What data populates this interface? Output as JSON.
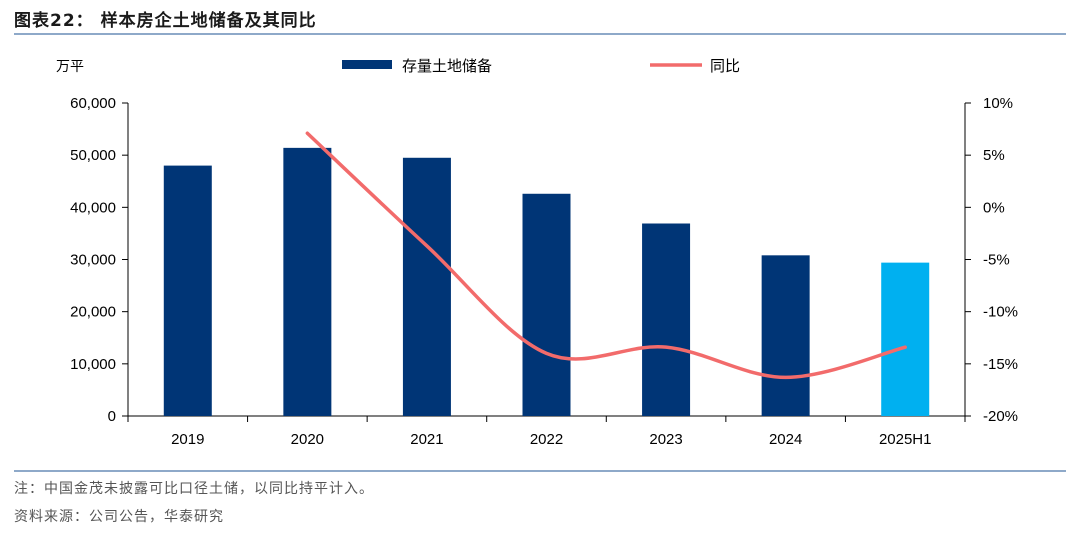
{
  "header": {
    "title": "图表22：  样本房企土地储备及其同比"
  },
  "footer": {
    "note": "注：中国金茂未披露可比口径土储，以同比持平计入。",
    "source": "资料来源：公司公告，华泰研究"
  },
  "colors": {
    "bar": "#003576",
    "bar_highlight": "#00b0f0",
    "line": "#f26b6b",
    "rule": "#8ea9c9"
  },
  "chart_data": {
    "type": "bar",
    "categories": [
      "2019",
      "2020",
      "2021",
      "2022",
      "2023",
      "2024",
      "2025H1"
    ],
    "unit_label": "万平",
    "series": [
      {
        "name": "存量土地储备",
        "type": "bar",
        "axis": "left",
        "values": [
          48000,
          51400,
          49500,
          42600,
          36900,
          30800,
          29400
        ]
      },
      {
        "name": "同比",
        "type": "line",
        "axis": "right",
        "smooth": true,
        "values": [
          null,
          7.1,
          -3.7,
          -14.0,
          -13.4,
          -16.3,
          -13.4
        ]
      }
    ],
    "ylim": [
      0,
      60000
    ],
    "y_ticks": [
      "60,000",
      "50,000",
      "40,000",
      "30,000",
      "20,000",
      "10,000",
      "0"
    ],
    "y2lim": [
      -20,
      10
    ],
    "y2_ticks": [
      "10%",
      "5%",
      "0%",
      "-5%",
      "-10%",
      "-15%",
      "-20%"
    ],
    "legend_position": "top",
    "grid": false
  }
}
